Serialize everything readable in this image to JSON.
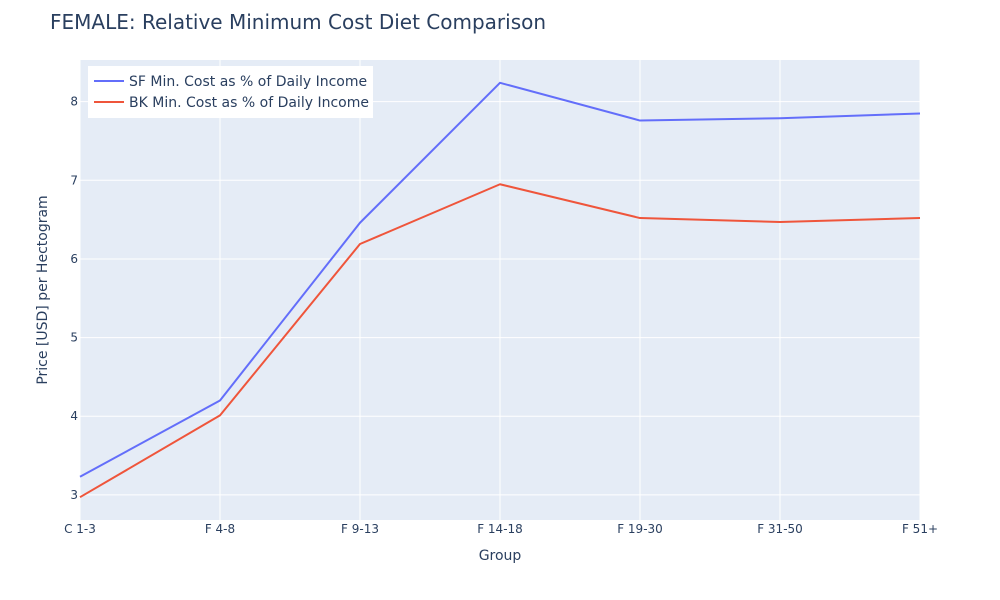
{
  "chart_data": {
    "type": "line",
    "title": "FEMALE: Relative Minimum Cost Diet Comparison",
    "xlabel": "Group",
    "ylabel": "Price [USD] per Hectogram",
    "categories": [
      "C 1-3",
      "F 4-8",
      "F 9-13",
      "F 14-18",
      "F 19-30",
      "F 31-50",
      "F 51+"
    ],
    "ylim": [
      2.68,
      8.53
    ],
    "yticks": [
      3,
      4,
      5,
      6,
      7,
      8
    ],
    "grid": true,
    "legend_position": "top-left",
    "series": [
      {
        "name": "SF Min. Cost as % of Daily Income",
        "color": "#636efa",
        "values": [
          3.23,
          4.2,
          6.46,
          8.24,
          7.76,
          7.79,
          7.85
        ]
      },
      {
        "name": "BK Min. Cost as % of Daily Income",
        "color": "#ef553b",
        "values": [
          2.97,
          4.01,
          6.19,
          6.95,
          6.52,
          6.47,
          6.52
        ]
      }
    ],
    "colors": {
      "plot_bg": "#e5ecf6",
      "grid": "#ffffff",
      "text": "#2a3f5f"
    }
  }
}
